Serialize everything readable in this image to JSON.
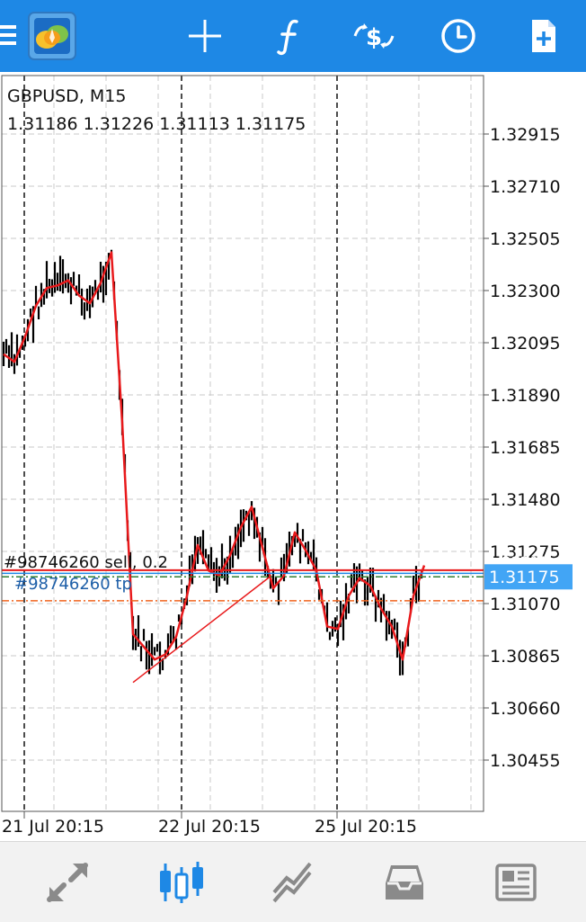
{
  "toolbar": {
    "icons": [
      "menu-icon",
      "app-logo-icon",
      "crosshair-icon",
      "indicators-icon",
      "symbol-quotes-icon",
      "timeframe-icon",
      "new-order-icon"
    ]
  },
  "chart": {
    "symbol": "GBPUSD, M15",
    "ohlc": "1.31186 1.31226 1.31113 1.31175",
    "current_price": "1.31175",
    "sell_price_tag": "1.31201",
    "order_label": "#98746260 sell, 0.2",
    "tp_label": "#98746260 tp",
    "colors": {
      "candles": "#000000",
      "moving_average": "#e8191b",
      "grid": "#c8c8c8",
      "order_line": "#e8191b",
      "ask_line": "#1e88e5",
      "tp_line": "#f0641e",
      "price_tag_bg": "#42a5f5"
    }
  },
  "chart_data": {
    "type": "line",
    "title": "GBPUSD, M15",
    "xlabel": "",
    "ylabel": "",
    "ylim": [
      1.3035,
      1.3305
    ],
    "y_ticks": [
      "1.32915",
      "1.32710",
      "1.32505",
      "1.32300",
      "1.32095",
      "1.31890",
      "1.31685",
      "1.31480",
      "1.31275",
      "1.31070",
      "1.30865",
      "1.30660",
      "1.30455"
    ],
    "x_ticks": [
      "21 Jul 20:15",
      "22 Jul 20:15",
      "25 Jul 20:15"
    ],
    "series": [
      {
        "values": [
          1.3205,
          1.3202,
          1.3212,
          1.3224,
          1.3231,
          1.3232,
          1.3234,
          1.3228,
          1.3225,
          1.3233,
          1.3245,
          1.3178,
          1.3095,
          1.309,
          1.3085,
          1.3087,
          1.3094,
          1.311,
          1.313,
          1.312,
          1.3118,
          1.3126,
          1.3137,
          1.3145,
          1.3129,
          1.3113,
          1.3118,
          1.3135,
          1.3128,
          1.312,
          1.3098,
          1.3097,
          1.311,
          1.3117,
          1.3114,
          1.3105,
          1.3098,
          1.3085,
          1.311,
          1.3122
        ]
      }
    ],
    "order_price": 1.31201,
    "current_price": 1.31175,
    "tp_price": 1.31081,
    "trendline": [
      [
        1.3076,
        1.3118
      ]
    ]
  },
  "bottom_nav": {
    "items": [
      "quotes-icon",
      "charts-icon",
      "trade-icon",
      "history-icon",
      "news-icon"
    ],
    "active": 1
  }
}
